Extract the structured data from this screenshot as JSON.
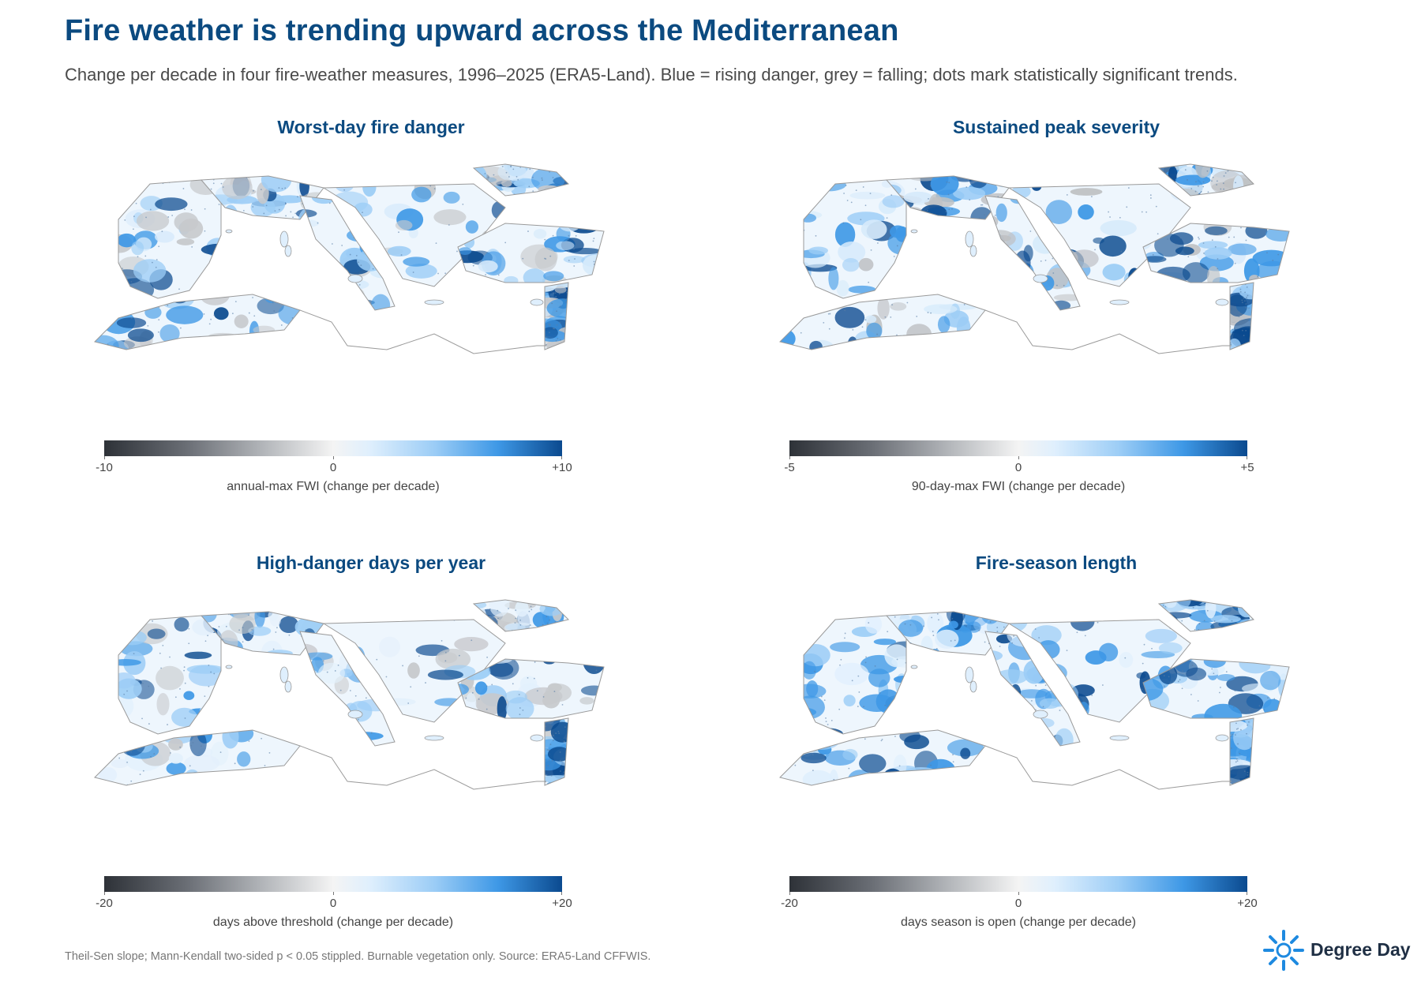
{
  "header": {
    "title": "Fire weather is trending upward across the Mediterranean",
    "subtitle": "Change per decade in four fire-weather measures, 1996–2025 (ERA5-Land). Blue = rising danger, grey = falling; dots mark statistically significant trends."
  },
  "panels": [
    {
      "title": "Worst-day fire danger",
      "scale": {
        "min": "-10",
        "mid": "0",
        "max": "+10"
      },
      "colorbar_label": "annual-max FWI  (change per decade)"
    },
    {
      "title": "Sustained peak severity",
      "scale": {
        "min": "-5",
        "mid": "0",
        "max": "+5"
      },
      "colorbar_label": "90-day-max FWI  (change per decade)"
    },
    {
      "title": "High-danger days per year",
      "scale": {
        "min": "-20",
        "mid": "0",
        "max": "+20"
      },
      "colorbar_label": "days above threshold  (change per decade)"
    },
    {
      "title": "Fire-season length",
      "scale": {
        "min": "-20",
        "mid": "0",
        "max": "+20"
      },
      "colorbar_label": "days season is open  (change per decade)"
    }
  ],
  "colors": {
    "title": "#0b4a80",
    "rising_dark": "#0b4a8f",
    "rising_mid": "#3e98e6",
    "rising_light": "#9ccdf6",
    "falling": "#6a6e75",
    "coast": "#9a9a9a"
  },
  "footer": {
    "note": "Theil-Sen slope; Mann-Kendall two-sided p < 0.05 stippled. Burnable vegetation only. Source: ERA5-Land CFFWIS."
  },
  "brand": {
    "name": "Degree Day",
    "icon": "sun-logo-icon"
  }
}
